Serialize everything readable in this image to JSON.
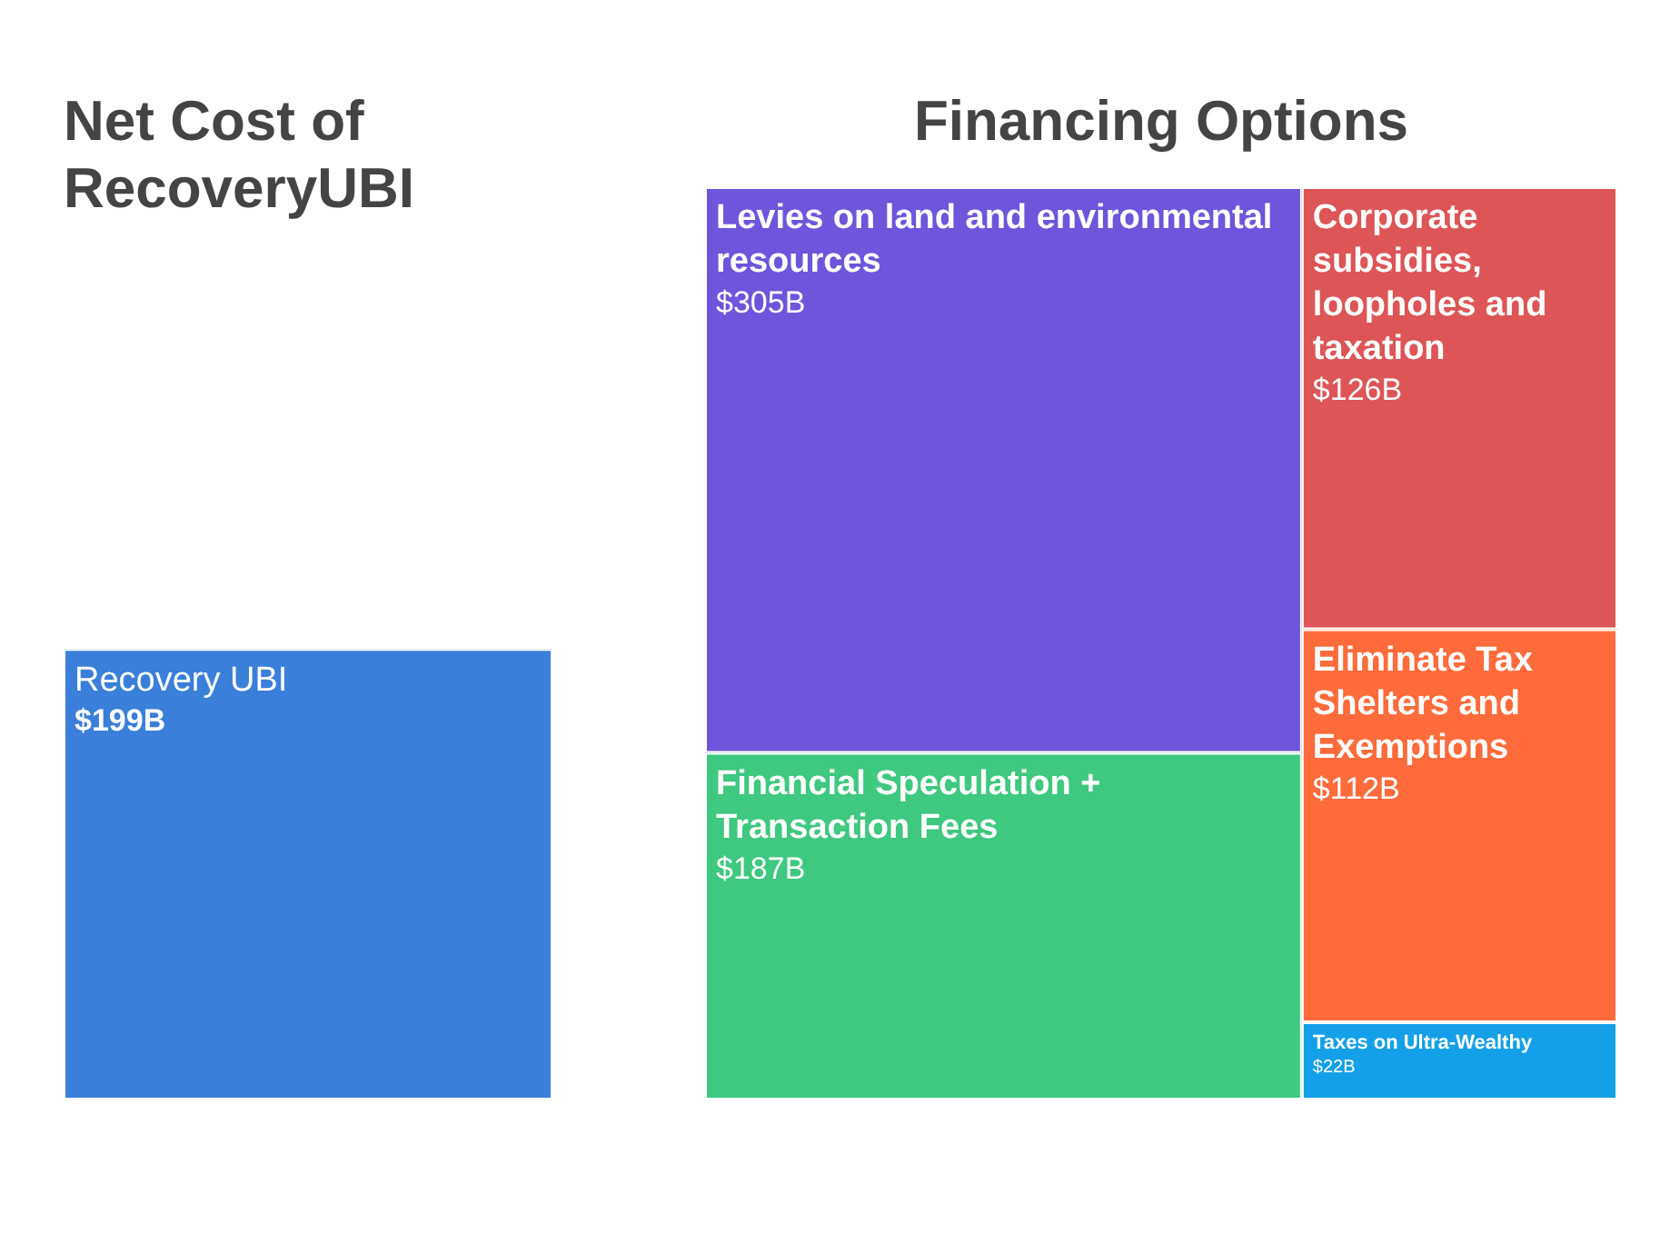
{
  "chart_data": [
    {
      "type": "other",
      "title": "Net Cost of RecoveryUBI",
      "categories": [
        "Recovery UBI"
      ],
      "values": [
        199
      ],
      "value_labels": [
        "$199B"
      ],
      "colors": [
        "#3a7fd9"
      ]
    },
    {
      "type": "other",
      "title": "Financing Options",
      "categories": [
        "Levies on land and environmental resources",
        "Financial Speculation + Transaction Fees",
        "Corporate subsidies, loopholes and taxation",
        "Eliminate Tax Shelters and Exemptions",
        "Taxes on Ultra-Wealthy"
      ],
      "values": [
        305,
        187,
        126,
        112,
        22
      ],
      "value_labels": [
        "$305B",
        "$187B",
        "$126B",
        "$112B",
        "$22B"
      ],
      "colors": [
        "#6e55dc",
        "#3ec880",
        "#dd5557",
        "#ff6b3a",
        "#14a0e8"
      ]
    }
  ]
}
